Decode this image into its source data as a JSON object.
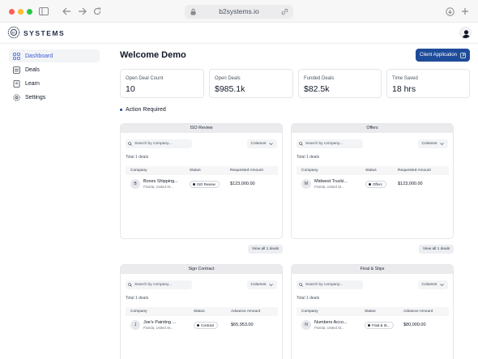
{
  "browser": {
    "url": "b2systems.io"
  },
  "header": {
    "brand": "SYSTEMS"
  },
  "sidebar": {
    "items": [
      {
        "label": "Dashboard",
        "icon": "grid-icon"
      },
      {
        "label": "Deals",
        "icon": "stack-icon"
      },
      {
        "label": "Learn",
        "icon": "book-icon"
      },
      {
        "label": "Settings",
        "icon": "gear-icon"
      }
    ]
  },
  "main": {
    "title": "Welcome Demo",
    "client_button": "Client Application",
    "stats": [
      {
        "label": "Open Deal Count",
        "value": "10"
      },
      {
        "label": "Open Deals",
        "value": "$985.1k"
      },
      {
        "label": "Funded Deals",
        "value": "$82.5k"
      },
      {
        "label": "Time Saved",
        "value": "18 hrs"
      }
    ],
    "action_required": "Action Required",
    "panels": [
      {
        "title": "ISO Review",
        "search_placeholder": "Search by company...",
        "columns_label": "Columns",
        "total": "Total 1 deals",
        "headers": [
          "Company",
          "Status",
          "Requested Amount"
        ],
        "row": {
          "initial": "B",
          "company": "Boxes Shipping...",
          "location": "Florida, United St...",
          "status": "ISO Review",
          "amount": "$123,000.00"
        },
        "view_all": "View all 1 deals"
      },
      {
        "title": "Offers",
        "search_placeholder": "Search by company...",
        "columns_label": "Columns",
        "total": "Total 1 deals",
        "headers": [
          "Company",
          "Status",
          "Requested Amount"
        ],
        "row": {
          "initial": "M",
          "company": "Midwest Trucki...",
          "location": "Florida, United St...",
          "status": "Offers",
          "amount": "$123,000.00"
        },
        "view_all": "View all 1 deals"
      },
      {
        "title": "Sign Contract",
        "search_placeholder": "Search by company...",
        "columns_label": "Columns",
        "total": "Total 1 deals",
        "headers": [
          "Company",
          "Status",
          "Advance Amount"
        ],
        "row": {
          "initial": "J",
          "company": "Joe's Painting ...",
          "location": "Florida, United St...",
          "status": "Contract",
          "amount": "$65,953.00"
        }
      },
      {
        "title": "Final & Stips",
        "search_placeholder": "Search by company...",
        "columns_label": "Columns",
        "total": "Total 1 deals",
        "headers": [
          "Company",
          "Status",
          "Advance Amount"
        ],
        "row": {
          "initial": "N",
          "company": "Numbers Acco...",
          "location": "Florida, United St...",
          "status": "Final & St...",
          "amount": "$80,000.00"
        }
      }
    ]
  },
  "colors": {
    "accent": "#1e4c9a",
    "active_nav": "#3b5bdb"
  }
}
